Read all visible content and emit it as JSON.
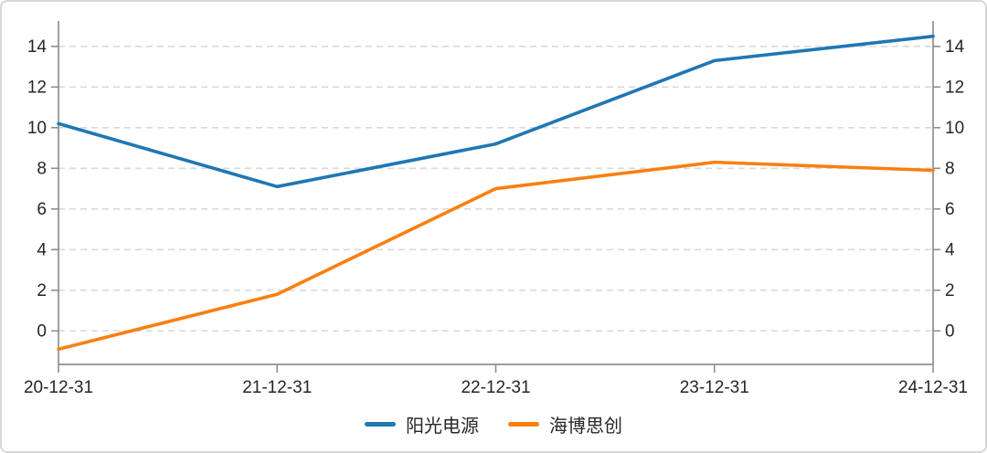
{
  "chart_data": {
    "type": "line",
    "x": [
      "20-12-31",
      "21-12-31",
      "22-12-31",
      "23-12-31",
      "24-12-31"
    ],
    "series": [
      {
        "name": "阳光电源",
        "color": "#1f77b4",
        "values": [
          10.2,
          7.1,
          9.2,
          13.3,
          14.5
        ]
      },
      {
        "name": "海博思创",
        "color": "#fa7f10",
        "values": [
          -0.9,
          1.8,
          7.0,
          8.3,
          7.9
        ]
      }
    ],
    "title": "",
    "xlabel": "",
    "ylabel": "",
    "ylim": [
      -1.65,
      15.25
    ],
    "yticks": [
      0,
      2,
      4,
      6,
      8,
      10,
      12,
      14
    ],
    "y_axis_sides": [
      "left",
      "right"
    ],
    "grid": "dashed-horizontal",
    "legend_position": "bottom-center"
  },
  "colors": {
    "axis": "#8f8f8f",
    "grid": "#d9d9d9",
    "tick_label": "#262626",
    "background": "#ffffff",
    "frame_border": "#d7d7d7"
  }
}
